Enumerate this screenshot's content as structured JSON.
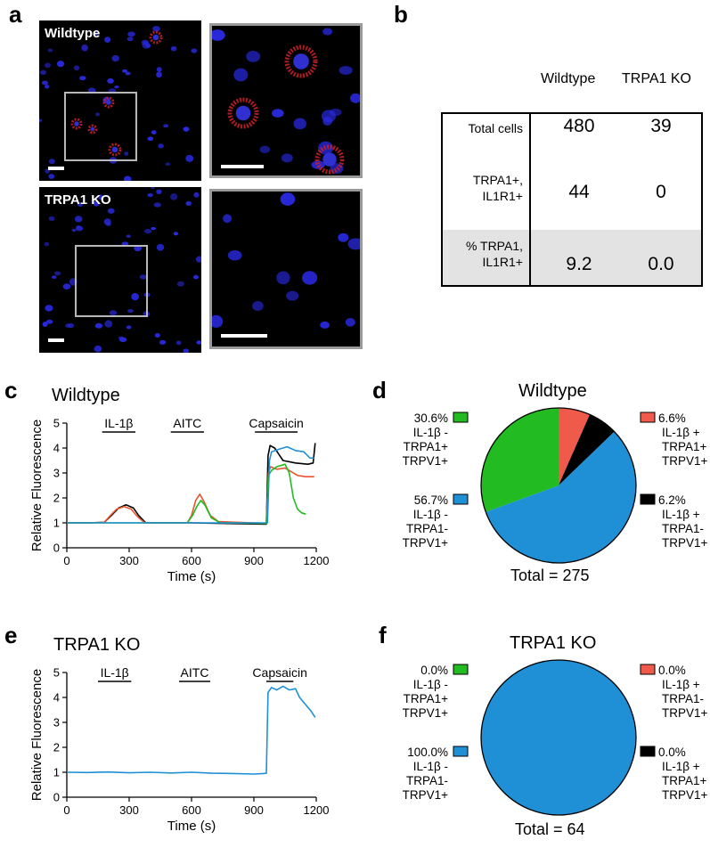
{
  "panel_letters": {
    "a": "a",
    "b": "b",
    "c": "c",
    "d": "d",
    "e": "e",
    "f": "f"
  },
  "panel_a": {
    "wildtype_label": "Wildtype",
    "ko_label": "TRPA1 KO"
  },
  "panel_b": {
    "col_headers": [
      "Wildtype",
      "TRPA1 KO"
    ],
    "rows": [
      {
        "label_lines": [
          "Total cells"
        ],
        "values": [
          "480",
          "39"
        ]
      },
      {
        "label_lines": [
          "TRPA1+,",
          "IL1R1+"
        ],
        "values": [
          "44",
          "0"
        ]
      },
      {
        "label_lines": [
          "% TRPA1,",
          "IL1R1+"
        ],
        "values": [
          "9.2",
          "0.0"
        ]
      }
    ]
  },
  "panel_c": {
    "title": "Wildtype"
  },
  "panel_e": {
    "title": "TRPA1 KO"
  },
  "panel_d": {
    "title": "Wildtype",
    "total": "Total = 275"
  },
  "panel_f": {
    "title": "TRPA1 KO",
    "total": "Total = 64"
  },
  "colors": {
    "green": "#22bb22",
    "red": "#ef5a4a",
    "blue": "#1f8fd6",
    "black": "#000000",
    "orange": "#e8552e"
  },
  "chart_data": [
    {
      "type": "line",
      "panel": "c",
      "title": "Wildtype",
      "xlabel": "Time (s)",
      "ylabel": "Relative Fluorescence",
      "xlim": [
        0,
        1200
      ],
      "ylim": [
        0,
        5
      ],
      "xticks": [
        "0",
        "300",
        "600",
        "900",
        "1200"
      ],
      "yticks": [
        "0",
        "1",
        "2",
        "3",
        "4",
        "5"
      ],
      "stimuli": [
        {
          "label": "IL-1β",
          "start": 170,
          "end": 330
        },
        {
          "label": "AITC",
          "start": 500,
          "end": 660
        },
        {
          "label": "Capsaicin",
          "start": 905,
          "end": 1110
        }
      ],
      "series": [
        {
          "name": "black",
          "color": "#000000",
          "points": [
            [
              0,
              1
            ],
            [
              100,
              1
            ],
            [
              180,
              1.02
            ],
            [
              215,
              1.3
            ],
            [
              250,
              1.6
            ],
            [
              285,
              1.72
            ],
            [
              320,
              1.6
            ],
            [
              345,
              1.3
            ],
            [
              380,
              1.0
            ],
            [
              600,
              1.0
            ],
            [
              960,
              0.95
            ],
            [
              968,
              3.7
            ],
            [
              978,
              4.1
            ],
            [
              1000,
              4.0
            ],
            [
              1040,
              3.5
            ],
            [
              1100,
              3.4
            ],
            [
              1160,
              3.35
            ],
            [
              1185,
              3.4
            ],
            [
              1195,
              4.2
            ]
          ]
        },
        {
          "name": "red",
          "color": "#e8552e",
          "points": [
            [
              0,
              1
            ],
            [
              100,
              1
            ],
            [
              180,
              1.02
            ],
            [
              210,
              1.3
            ],
            [
              240,
              1.55
            ],
            [
              275,
              1.65
            ],
            [
              310,
              1.55
            ],
            [
              340,
              1.25
            ],
            [
              375,
              1.0
            ],
            [
              580,
              1.0
            ],
            [
              600,
              1.3
            ],
            [
              620,
              1.9
            ],
            [
              640,
              2.15
            ],
            [
              660,
              1.85
            ],
            [
              690,
              1.3
            ],
            [
              730,
              1.05
            ],
            [
              960,
              0.98
            ],
            [
              970,
              3.0
            ],
            [
              980,
              3.25
            ],
            [
              1010,
              3.15
            ],
            [
              1050,
              3.2
            ],
            [
              1080,
              3.05
            ],
            [
              1110,
              2.9
            ],
            [
              1150,
              2.85
            ],
            [
              1190,
              2.85
            ]
          ]
        },
        {
          "name": "green",
          "color": "#22bb22",
          "points": [
            [
              0,
              1
            ],
            [
              580,
              1.0
            ],
            [
              605,
              1.3
            ],
            [
              625,
              1.65
            ],
            [
              645,
              1.9
            ],
            [
              665,
              1.7
            ],
            [
              695,
              1.2
            ],
            [
              740,
              1.0
            ],
            [
              960,
              0.98
            ],
            [
              970,
              2.9
            ],
            [
              985,
              3.1
            ],
            [
              1010,
              3.25
            ],
            [
              1050,
              3.35
            ],
            [
              1070,
              3.0
            ],
            [
              1090,
              2.0
            ],
            [
              1110,
              1.55
            ],
            [
              1130,
              1.4
            ],
            [
              1150,
              1.35
            ]
          ]
        },
        {
          "name": "blue",
          "color": "#1f8fd6",
          "points": [
            [
              0,
              1
            ],
            [
              600,
              1.0
            ],
            [
              965,
              1.0
            ],
            [
              975,
              3.5
            ],
            [
              985,
              3.85
            ],
            [
              1020,
              3.95
            ],
            [
              1060,
              4.05
            ],
            [
              1100,
              3.9
            ],
            [
              1140,
              3.85
            ],
            [
              1170,
              3.6
            ],
            [
              1190,
              3.6
            ]
          ]
        }
      ]
    },
    {
      "type": "line",
      "panel": "e",
      "title": "TRPA1 KO",
      "xlabel": "Time (s)",
      "ylabel": "Relative Fluorescence",
      "xlim": [
        0,
        1200
      ],
      "ylim": [
        0,
        5
      ],
      "xticks": [
        "0",
        "300",
        "600",
        "900",
        "1200"
      ],
      "yticks": [
        "0",
        "1",
        "2",
        "3",
        "4",
        "5"
      ],
      "stimuli": [
        {
          "label": "IL-1β",
          "start": 150,
          "end": 310
        },
        {
          "label": "AITC",
          "start": 540,
          "end": 690
        },
        {
          "label": "Capsaicin",
          "start": 960,
          "end": 1090
        }
      ],
      "series": [
        {
          "name": "blue",
          "color": "#1f8fd6",
          "points": [
            [
              0,
              1.0
            ],
            [
              100,
              0.99
            ],
            [
              200,
              1.01
            ],
            [
              300,
              0.98
            ],
            [
              400,
              1.0
            ],
            [
              500,
              0.97
            ],
            [
              600,
              1.0
            ],
            [
              700,
              0.96
            ],
            [
              800,
              0.95
            ],
            [
              900,
              0.93
            ],
            [
              945,
              0.95
            ],
            [
              960,
              0.96
            ],
            [
              968,
              4.2
            ],
            [
              985,
              4.4
            ],
            [
              1010,
              4.3
            ],
            [
              1040,
              4.45
            ],
            [
              1070,
              4.3
            ],
            [
              1100,
              4.35
            ],
            [
              1120,
              4.0
            ],
            [
              1150,
              3.7
            ],
            [
              1175,
              3.45
            ],
            [
              1195,
              3.2
            ]
          ]
        }
      ]
    },
    {
      "type": "pie",
      "panel": "d",
      "title": "Wildtype",
      "total": "Total = 275",
      "slices": [
        {
          "value": 30.6,
          "color": "#22bb22",
          "label": [
            "30.6%",
            "IL-1β -",
            "TRPA1+",
            "TRPV1+"
          ]
        },
        {
          "value": 6.6,
          "color": "#ef5a4a",
          "label": [
            "6.6%",
            "IL-1β +",
            "TRPA1+",
            "TRPV1+"
          ]
        },
        {
          "value": 6.2,
          "color": "#000000",
          "label": [
            "6.2%",
            "IL-1β  +",
            "TRPA1-",
            "TRPV1+"
          ]
        },
        {
          "value": 56.7,
          "color": "#1f8fd6",
          "label": [
            "56.7%",
            "IL-1β -",
            "TRPA1-",
            "TRPV1+"
          ]
        }
      ]
    },
    {
      "type": "pie",
      "panel": "f",
      "title": "TRPA1 KO",
      "total": "Total = 64",
      "slices": [
        {
          "value": 0.0,
          "color": "#22bb22",
          "label": [
            "0.0%",
            "IL-1β -",
            "TRPA1+",
            "TRPV1+"
          ]
        },
        {
          "value": 0.0,
          "color": "#ef5a4a",
          "label": [
            "0.0%",
            "IL-1β  +",
            "TRPA1-",
            "TRPV1+"
          ]
        },
        {
          "value": 0.0,
          "color": "#000000",
          "label": [
            "0.0%",
            "IL-1β +",
            "TRPA1+",
            "TRPV1+"
          ]
        },
        {
          "value": 100.0,
          "color": "#1f8fd6",
          "label": [
            "100.0%",
            "IL-1β -",
            "TRPA1-",
            "TRPV1+"
          ]
        }
      ]
    }
  ]
}
